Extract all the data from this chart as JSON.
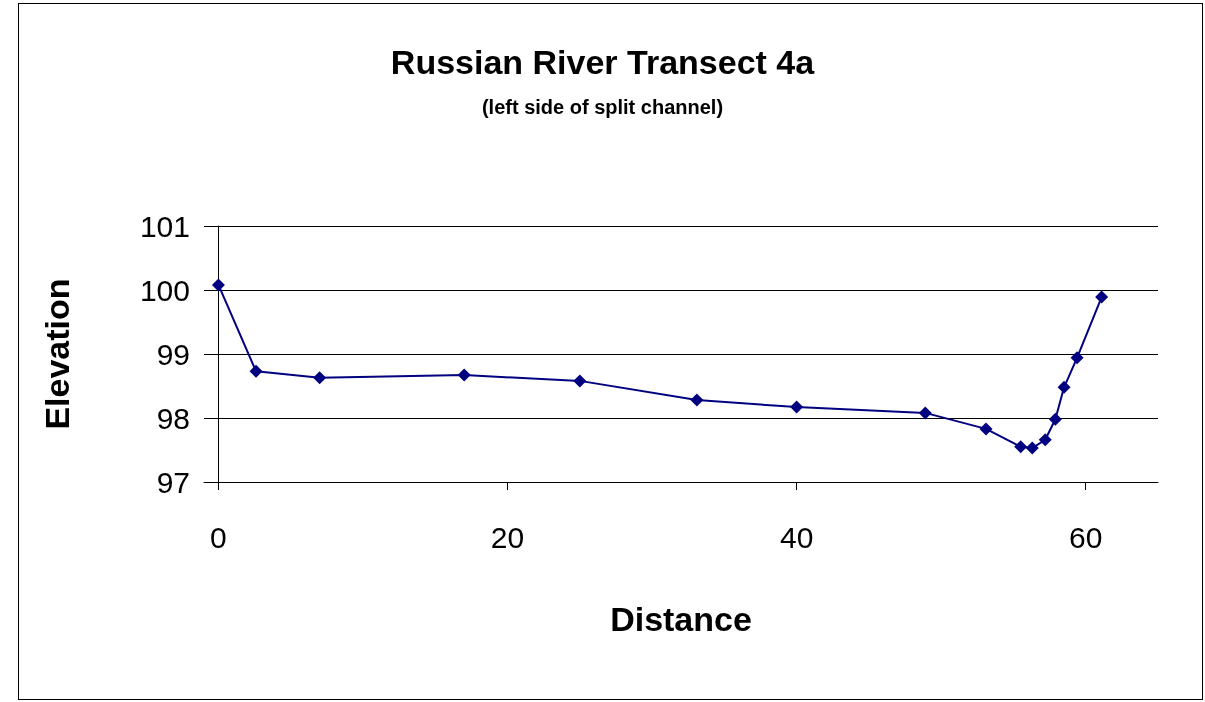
{
  "chart_data": {
    "type": "line",
    "title": "Russian River Transect 4a",
    "subtitle": "(left side of split channel)",
    "xlabel": "Distance",
    "ylabel": "Elevation",
    "x": [
      0,
      2.6,
      7,
      17,
      25,
      33.1,
      40,
      48.9,
      53.1,
      55.5,
      56.3,
      57.2,
      57.9,
      58.5,
      59.4,
      61.1
    ],
    "series": [
      {
        "color": "#000080",
        "values": [
          100.08,
          98.73,
          98.63,
          98.67,
          98.58,
          98.28,
          98.17,
          98.08,
          97.83,
          97.55,
          97.53,
          97.66,
          97.98,
          98.48,
          98.94,
          99.89
        ]
      }
    ],
    "xlim": [
      -1,
      65
    ],
    "xticks": [
      0,
      20,
      40,
      60
    ],
    "ylim": [
      97,
      101
    ],
    "yticks": [
      97,
      98,
      99,
      100,
      101
    ],
    "grid": "y",
    "marker": "diamond",
    "line_style": "solid"
  }
}
